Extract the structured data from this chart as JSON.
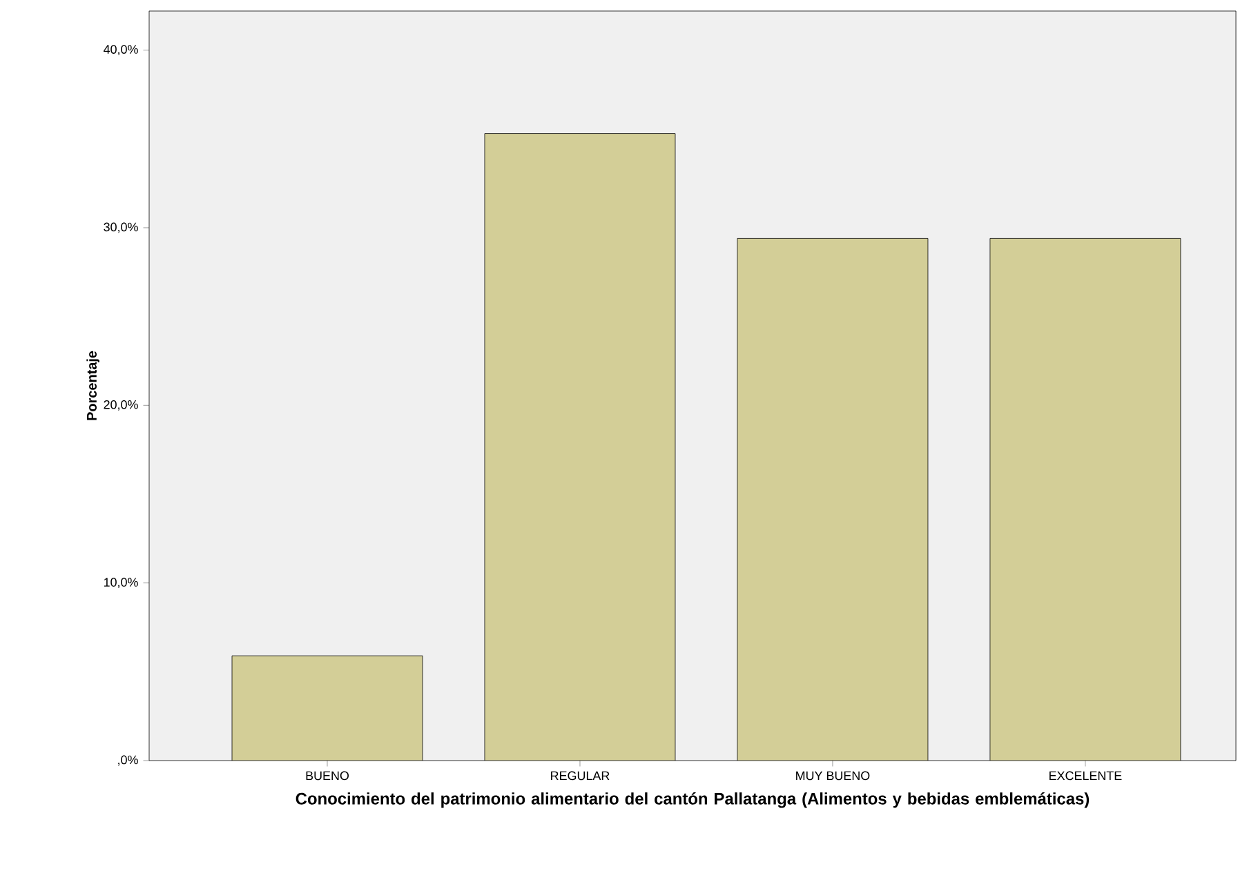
{
  "chart_data": {
    "type": "bar",
    "xlabel": "Conocimiento del patrimonio alimentario del cantón Pallatanga (Alimentos y bebidas emblemáticas)",
    "ylabel": "Porcentaje",
    "categories": [
      "BUENO",
      "REGULAR",
      "MUY BUENO",
      "EXCELENTE"
    ],
    "values": [
      5.9,
      35.3,
      29.4,
      29.4
    ],
    "color": "#d3ce97",
    "ylim": [
      0,
      42.2
    ],
    "yticks": [
      {
        "value": 0,
        "label": ",0%"
      },
      {
        "value": 10,
        "label": "10,0%"
      },
      {
        "value": 20,
        "label": "20,0%"
      },
      {
        "value": 30,
        "label": "30,0%"
      },
      {
        "value": 40,
        "label": "40,0%"
      }
    ],
    "grid": false
  }
}
